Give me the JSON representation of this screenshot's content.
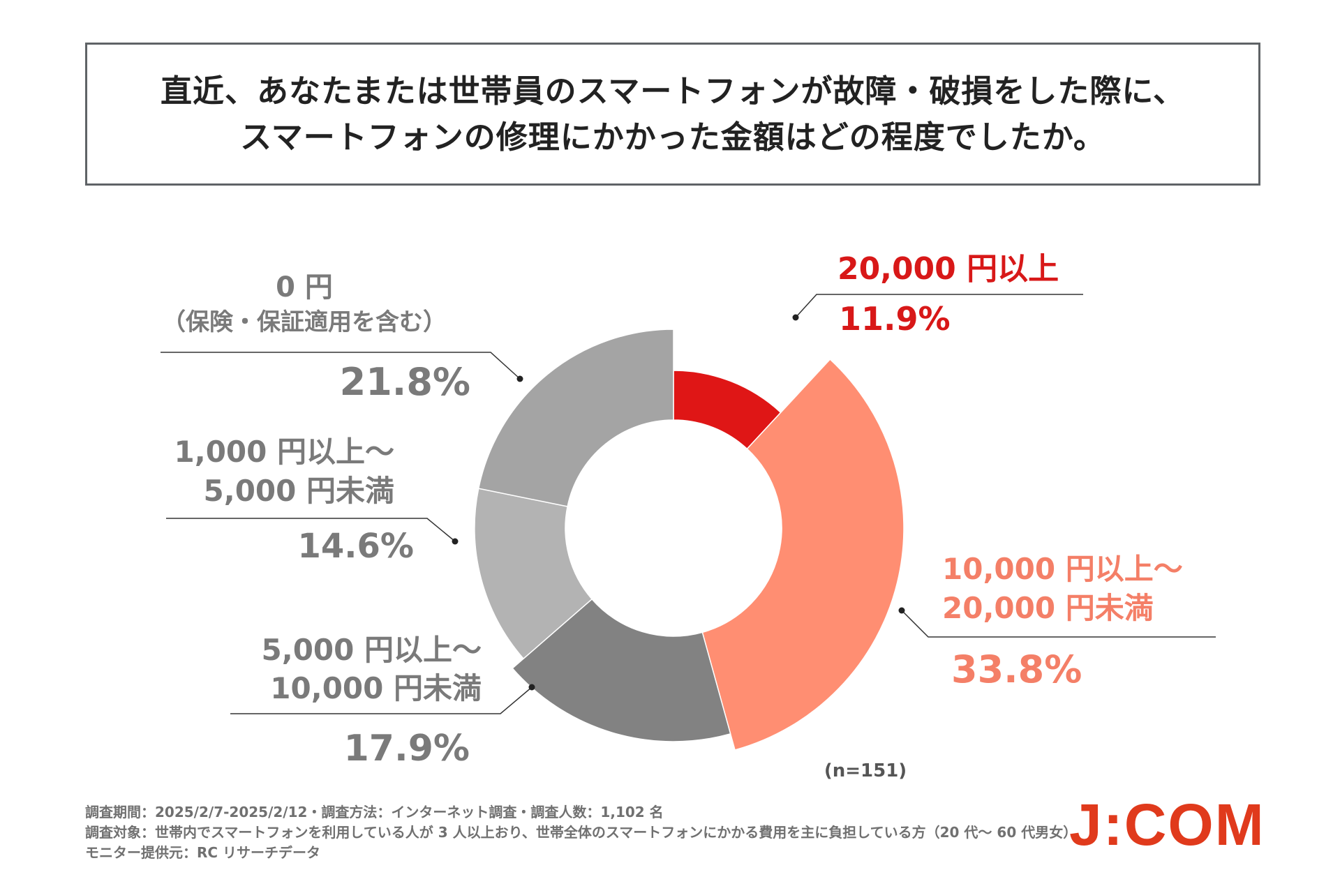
{
  "title": {
    "line1": "直近、あなたまたは世帯員のスマートフォンが故障・破損をした際に、",
    "line2": "スマートフォンの修理にかかった金額はどの程度でしたか。"
  },
  "chart_data": {
    "type": "pie",
    "variant": "donut",
    "sample_size_label": "(n=151)",
    "series": [
      {
        "label_lines": [
          "20,000 円以上"
        ],
        "value": 11.9,
        "value_label": "11.9%",
        "color": "#df1616",
        "label_color": "#d81818"
      },
      {
        "label_lines": [
          "10,000 円以上～",
          "20,000 円未満"
        ],
        "value": 33.8,
        "value_label": "33.8%",
        "color": "#ff8e72",
        "label_color": "#f47f67"
      },
      {
        "label_lines": [
          "5,000 円以上～",
          "10,000 円未満"
        ],
        "value": 17.9,
        "value_label": "17.9%",
        "color": "#828282",
        "label_color": "#7a7a7a"
      },
      {
        "label_lines": [
          "1,000 円以上～",
          "5,000 円未満"
        ],
        "value": 14.6,
        "value_label": "14.6%",
        "color": "#b3b3b3",
        "label_color": "#7a7a7a"
      },
      {
        "label_lines": [
          "0 円",
          "（保険・保証適用を含む）"
        ],
        "value": 21.8,
        "value_label": "21.8%",
        "color": "#a4a4a4",
        "label_color": "#7a7a7a"
      }
    ]
  },
  "footnotes": [
    "調査期間：2025/2/7-2025/2/12・調査方法：インターネット調査・調査人数：1,102 名",
    "調査対象：世帯内でスマートフォンを利用している人が 3 人以上おり、世帯全体のスマートフォンにかかる費用を主に負担している方（20 代～ 60 代男女）",
    "モニター提供元：RC リサーチデータ"
  ],
  "logo_text": "J:COM"
}
